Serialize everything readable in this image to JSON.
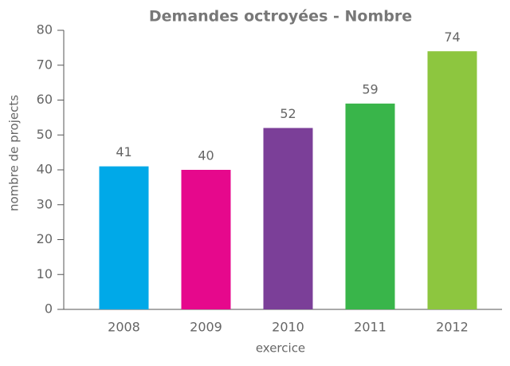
{
  "chart_data": {
    "type": "bar",
    "title": "Demandes octroyées - Nombre",
    "x_label": "exercice",
    "y_label": "nombre de projects",
    "categories": [
      "2008",
      "2009",
      "2010",
      "2011",
      "2012"
    ],
    "values": [
      41,
      40,
      52,
      59,
      74
    ],
    "colors": [
      "#00a9e8",
      "#e6088c",
      "#7b3f98",
      "#39b54a",
      "#8dc63f"
    ],
    "ylim": [
      0,
      80
    ],
    "yticks": [
      0,
      10,
      20,
      30,
      40,
      50,
      60,
      70,
      80
    ],
    "grid": false
  }
}
